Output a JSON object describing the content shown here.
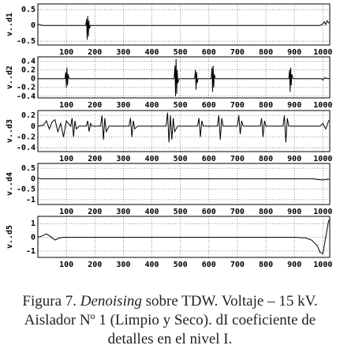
{
  "chart_data": [
    {
      "type": "line",
      "ylabel": "v..d1",
      "color": "#000000",
      "grid": true,
      "xlim": [
        0,
        1024
      ],
      "ylim": [
        -0.62,
        0.68
      ],
      "xticks": [
        100,
        200,
        300,
        400,
        500,
        600,
        700,
        800,
        900,
        1000
      ],
      "yticks": [
        0.5,
        0,
        -0.5
      ],
      "x": [
        0,
        10,
        20,
        168,
        171,
        173,
        175,
        177,
        179,
        181,
        184,
        400,
        990,
        1000,
        1005,
        1010,
        1015,
        1020,
        1024
      ],
      "values": [
        0.04,
        0.01,
        0,
        0,
        0.2,
        -0.45,
        0.3,
        -0.35,
        0.15,
        -0.1,
        0,
        0,
        0,
        0.05,
        0.12,
        0.03,
        0.15,
        0.08,
        0.1
      ]
    },
    {
      "type": "line",
      "ylabel": "v..d2",
      "color": "#000000",
      "grid": true,
      "xlim": [
        0,
        1024
      ],
      "ylim": [
        -0.44,
        0.5
      ],
      "xticks": [
        100,
        200,
        300,
        400,
        500,
        600,
        700,
        800,
        900,
        1000
      ],
      "yticks": [
        0.4,
        0.2,
        0,
        -0.2,
        -0.4
      ],
      "x": [
        0,
        95,
        98,
        100,
        102,
        104,
        106,
        110,
        478,
        481,
        483,
        485,
        487,
        489,
        491,
        495,
        550,
        553,
        555,
        557,
        559,
        562,
        608,
        611,
        613,
        615,
        617,
        619,
        623,
        880,
        883,
        885,
        887,
        889,
        891,
        895,
        995,
        1000,
        1005,
        1024
      ],
      "values": [
        0,
        0,
        0.15,
        -0.2,
        0.25,
        -0.15,
        0.1,
        0,
        0,
        0.3,
        -0.4,
        0.45,
        -0.35,
        0.2,
        -0.1,
        0,
        0,
        0.2,
        -0.25,
        0.15,
        -0.1,
        0,
        0,
        0.25,
        -0.3,
        0.3,
        -0.2,
        0.1,
        0,
        0,
        0.2,
        -0.3,
        0.25,
        -0.15,
        0.1,
        0,
        0,
        -0.03,
        0.02,
        0
      ]
    },
    {
      "type": "line",
      "ylabel": "v..d3",
      "color": "#000000",
      "grid": true,
      "xlim": [
        0,
        1024
      ],
      "ylim": [
        -0.47,
        0.29
      ],
      "xticks": [
        100,
        200,
        300,
        400,
        500,
        600,
        700,
        800,
        900,
        1000
      ],
      "yticks": [
        0.2,
        0,
        -0.2,
        -0.4
      ],
      "x": [
        0,
        20,
        30,
        40,
        50,
        60,
        70,
        80,
        90,
        100,
        115,
        120,
        125,
        130,
        135,
        145,
        170,
        175,
        180,
        185,
        190,
        220,
        225,
        230,
        235,
        240,
        250,
        320,
        325,
        330,
        335,
        340,
        350,
        450,
        455,
        460,
        465,
        470,
        475,
        480,
        490,
        560,
        565,
        570,
        575,
        580,
        630,
        635,
        640,
        645,
        650,
        700,
        705,
        710,
        715,
        720,
        780,
        785,
        790,
        795,
        800,
        860,
        865,
        870,
        875,
        880,
        990,
        1000,
        1010,
        1020,
        1024
      ],
      "values": [
        0,
        0.02,
        0.1,
        -0.05,
        0.08,
        0.12,
        -0.1,
        0.05,
        -0.2,
        0.1,
        0,
        0.15,
        -0.2,
        0.1,
        -0.05,
        0,
        0,
        0.1,
        -0.1,
        0.05,
        0,
        0,
        0.2,
        -0.25,
        0.15,
        -0.1,
        0,
        0,
        0.15,
        -0.2,
        0.1,
        -0.05,
        0,
        0,
        0.25,
        -0.3,
        0.2,
        -0.25,
        0.15,
        -0.1,
        0,
        0,
        0.15,
        -0.2,
        0.1,
        0,
        0,
        0.2,
        -0.25,
        0.15,
        0,
        0,
        0.2,
        -0.15,
        0.1,
        0,
        0,
        0.15,
        -0.2,
        0.1,
        0,
        0,
        0.2,
        -0.3,
        0.15,
        0,
        0,
        0.05,
        -0.05,
        0.1,
        0.1
      ]
    },
    {
      "type": "line",
      "ylabel": "v..d4",
      "color": "#000000",
      "grid": true,
      "xlim": [
        0,
        1024
      ],
      "ylim": [
        -1.23,
        0.73
      ],
      "xticks": [
        100,
        200,
        300,
        400,
        500,
        600,
        700,
        800,
        900,
        1000
      ],
      "yticks": [
        0.5,
        0,
        -0.5,
        -1
      ],
      "x": [
        0,
        10,
        20,
        960,
        980,
        1000,
        1010,
        1024
      ],
      "values": [
        0.03,
        0,
        0,
        0,
        -0.03,
        -0.06,
        -0.04,
        -0.02
      ]
    },
    {
      "type": "line",
      "ylabel": "v..d5",
      "color": "#000000",
      "grid": true,
      "xlim": [
        0,
        1024
      ],
      "ylim": [
        -1.47,
        1.53
      ],
      "xticks": [
        100,
        200,
        300,
        400,
        500,
        600,
        700,
        800,
        900,
        1000
      ],
      "yticks": [
        1,
        0,
        -1
      ],
      "x": [
        0,
        15,
        30,
        45,
        60,
        75,
        90,
        900,
        940,
        960,
        980,
        990,
        1000,
        1010,
        1020,
        1024
      ],
      "values": [
        0,
        0.1,
        0.25,
        0.05,
        -0.2,
        -0.05,
        0,
        0,
        -0.05,
        -0.2,
        -0.6,
        -1.1,
        -1.2,
        0,
        1.2,
        1.3
      ]
    }
  ],
  "caption": {
    "label": "Figura 7.",
    "emphasis": "Denoising",
    "text": "sobre TDW. Voltaje – 15 kV. Aislador Nº 1 (Limpio y Seco). dI coeficiente de detalles en el nivel I."
  }
}
